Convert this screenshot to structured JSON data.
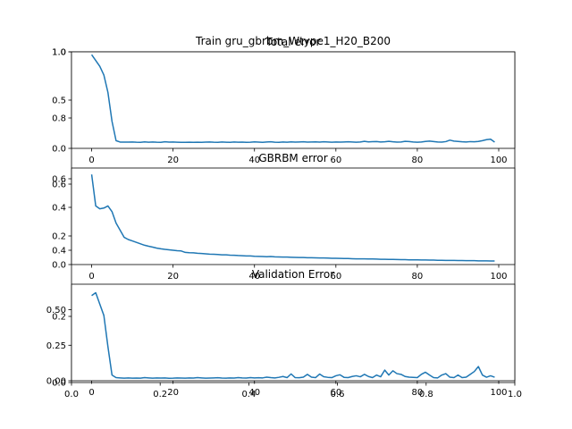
{
  "figure": {
    "title": "Train gru_gbrbm_Wtype1_H20_B200",
    "outer_axis": {
      "xticks": [
        0.0,
        0.2,
        0.4,
        0.6,
        0.8,
        1.0
      ],
      "xtick_labels": [
        "0.0",
        "0.2",
        "0.4",
        "0.6",
        "0.8",
        "1.0"
      ],
      "yticks": [
        0.0,
        0.2,
        0.4,
        0.6,
        0.8,
        1.0
      ],
      "ytick_labels": [
        "0.0",
        "0.2",
        "0.4",
        "0.6",
        "0.8",
        "1.0"
      ]
    },
    "line_color": "#1f77b4"
  },
  "chart_data": [
    {
      "type": "line",
      "title": "Total error",
      "xlabel": "",
      "ylabel": "",
      "xlim": [
        -4.95,
        103.95
      ],
      "ylim": [
        0,
        1
      ],
      "xticks": [
        0,
        20,
        40,
        60,
        80,
        100
      ],
      "xtick_labels": [
        "0",
        "20",
        "40",
        "60",
        "80",
        "100"
      ],
      "yticks": [
        0.0,
        0.5,
        1.0
      ],
      "ytick_labels": [
        "0.0",
        "0.5",
        "1.0"
      ],
      "grid": false,
      "series": [
        {
          "values": [
            0.97,
            0.91,
            0.85,
            0.76,
            0.58,
            0.28,
            0.08,
            0.065,
            0.065,
            0.065,
            0.066,
            0.064,
            0.063,
            0.067,
            0.064,
            0.066,
            0.064,
            0.063,
            0.068,
            0.065,
            0.066,
            0.064,
            0.062,
            0.063,
            0.064,
            0.062,
            0.064,
            0.063,
            0.065,
            0.066,
            0.064,
            0.063,
            0.066,
            0.064,
            0.062,
            0.066,
            0.064,
            0.065,
            0.063,
            0.064,
            0.067,
            0.065,
            0.063,
            0.066,
            0.068,
            0.064,
            0.062,
            0.066,
            0.064,
            0.067,
            0.065,
            0.066,
            0.068,
            0.065,
            0.066,
            0.067,
            0.065,
            0.068,
            0.066,
            0.064,
            0.066,
            0.065,
            0.066,
            0.068,
            0.066,
            0.064,
            0.066,
            0.073,
            0.067,
            0.069,
            0.071,
            0.066,
            0.068,
            0.073,
            0.068,
            0.065,
            0.066,
            0.073,
            0.071,
            0.066,
            0.064,
            0.066,
            0.072,
            0.075,
            0.071,
            0.066,
            0.065,
            0.07,
            0.085,
            0.075,
            0.072,
            0.068,
            0.066,
            0.07,
            0.068,
            0.072,
            0.08,
            0.09,
            0.095,
            0.065
          ]
        }
      ]
    },
    {
      "type": "line",
      "title": "GBRBM error",
      "xlabel": "",
      "ylabel": "",
      "xlim": [
        -4.95,
        103.95
      ],
      "ylim": [
        0.0,
        0.675
      ],
      "xticks": [
        0,
        20,
        40,
        60,
        80,
        100
      ],
      "xtick_labels": [
        "0",
        "20",
        "40",
        "60",
        "80",
        "100"
      ],
      "yticks": [
        0.0,
        0.2,
        0.4,
        0.6
      ],
      "ytick_labels": [
        "0.0",
        "0.2",
        "0.4",
        "0.6"
      ],
      "grid": false,
      "series": [
        {
          "values": [
            0.63,
            0.41,
            0.39,
            0.395,
            0.41,
            0.37,
            0.29,
            0.24,
            0.19,
            0.175,
            0.165,
            0.155,
            0.145,
            0.135,
            0.128,
            0.122,
            0.115,
            0.11,
            0.106,
            0.103,
            0.1,
            0.097,
            0.095,
            0.085,
            0.083,
            0.082,
            0.079,
            0.077,
            0.075,
            0.073,
            0.072,
            0.07,
            0.068,
            0.068,
            0.066,
            0.065,
            0.063,
            0.062,
            0.06,
            0.06,
            0.058,
            0.057,
            0.056,
            0.055,
            0.056,
            0.054,
            0.053,
            0.052,
            0.052,
            0.051,
            0.05,
            0.049,
            0.049,
            0.048,
            0.048,
            0.047,
            0.046,
            0.046,
            0.045,
            0.044,
            0.044,
            0.043,
            0.042,
            0.042,
            0.041,
            0.04,
            0.04,
            0.04,
            0.039,
            0.039,
            0.038,
            0.037,
            0.037,
            0.036,
            0.036,
            0.035,
            0.034,
            0.034,
            0.033,
            0.033,
            0.033,
            0.032,
            0.032,
            0.031,
            0.031,
            0.03,
            0.03,
            0.029,
            0.029,
            0.029,
            0.028,
            0.028,
            0.027,
            0.027,
            0.027,
            0.026,
            0.026,
            0.026,
            0.025,
            0.025
          ]
        }
      ]
    },
    {
      "type": "line",
      "title": "Validation Error",
      "xlabel": "",
      "ylabel": "",
      "xlim": [
        -4.95,
        103.95
      ],
      "ylim": [
        0.0,
        0.68
      ],
      "xticks": [
        0,
        20,
        40,
        60,
        80,
        100
      ],
      "xtick_labels": [
        "0",
        "20",
        "40",
        "60",
        "80",
        "100"
      ],
      "yticks": [
        0.0,
        0.25,
        0.5
      ],
      "ytick_labels": [
        "0.00",
        "0.25",
        "0.50"
      ],
      "grid": false,
      "series": [
        {
          "values": [
            0.6,
            0.62,
            0.54,
            0.46,
            0.24,
            0.04,
            0.022,
            0.02,
            0.018,
            0.02,
            0.018,
            0.019,
            0.018,
            0.022,
            0.02,
            0.018,
            0.02,
            0.019,
            0.02,
            0.017,
            0.018,
            0.02,
            0.019,
            0.018,
            0.02,
            0.019,
            0.022,
            0.02,
            0.018,
            0.019,
            0.02,
            0.021,
            0.019,
            0.018,
            0.02,
            0.019,
            0.022,
            0.02,
            0.019,
            0.022,
            0.02,
            0.021,
            0.02,
            0.025,
            0.022,
            0.02,
            0.024,
            0.03,
            0.022,
            0.048,
            0.022,
            0.021,
            0.025,
            0.045,
            0.025,
            0.022,
            0.047,
            0.028,
            0.024,
            0.022,
            0.035,
            0.042,
            0.024,
            0.022,
            0.03,
            0.035,
            0.028,
            0.045,
            0.03,
            0.022,
            0.04,
            0.028,
            0.075,
            0.04,
            0.07,
            0.05,
            0.045,
            0.03,
            0.025,
            0.024,
            0.022,
            0.045,
            0.06,
            0.04,
            0.022,
            0.02,
            0.04,
            0.05,
            0.025,
            0.022,
            0.04,
            0.022,
            0.025,
            0.045,
            0.065,
            0.1,
            0.04,
            0.025,
            0.035,
            0.025
          ]
        }
      ]
    }
  ]
}
